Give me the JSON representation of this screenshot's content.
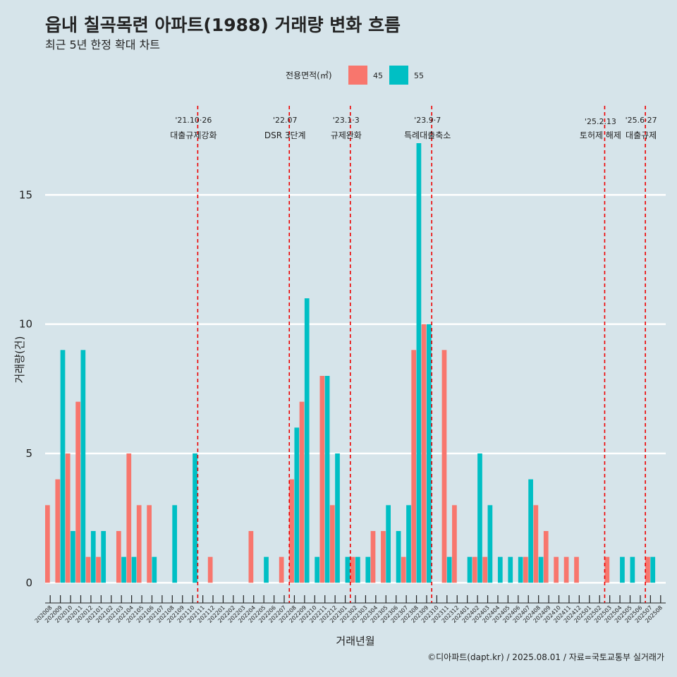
{
  "chart_data": {
    "type": "bar",
    "title": "읍내 칠곡목련 아파트(1988) 거래량 변화 흐름",
    "subtitle": "최근 5년 한정 확대 차트",
    "xlabel": "거래년월",
    "ylabel": "거래량(건)",
    "ylim": [
      -0.7,
      18.5
    ],
    "yticks": [
      0,
      5,
      10,
      15
    ],
    "legend": {
      "title": "전용면적(㎡)",
      "position": "top"
    },
    "categories": [
      "202008",
      "202009",
      "202010",
      "202011",
      "202012",
      "202101",
      "202102",
      "202103",
      "202104",
      "202105",
      "202106",
      "202107",
      "202108",
      "202109",
      "202110",
      "202111",
      "202112",
      "202201",
      "202202",
      "202203",
      "202204",
      "202205",
      "202206",
      "202207",
      "202208",
      "202209",
      "202210",
      "202211",
      "202212",
      "202301",
      "202302",
      "202303",
      "202304",
      "202305",
      "202306",
      "202307",
      "202308",
      "202309",
      "202310",
      "202311",
      "202312",
      "202401",
      "202402",
      "202403",
      "202404",
      "202405",
      "202406",
      "202407",
      "202408",
      "202409",
      "202410",
      "202411",
      "202412",
      "202501",
      "202502",
      "202503",
      "202504",
      "202505",
      "202506",
      "202507",
      "202508"
    ],
    "series": [
      {
        "name": "45",
        "color": "#f8766d",
        "values": [
          3,
          4,
          5,
          7,
          1,
          1,
          0,
          2,
          5,
          3,
          3,
          0,
          0,
          0,
          0,
          0,
          1,
          0,
          0,
          0,
          2,
          0,
          0,
          1,
          4,
          7,
          0,
          8,
          3,
          0,
          1,
          0,
          2,
          2,
          0,
          1,
          9,
          10,
          0,
          9,
          3,
          0,
          1,
          1,
          0,
          0,
          0,
          1,
          3,
          2,
          1,
          1,
          1,
          0,
          0,
          1,
          0,
          0,
          0,
          1,
          0
        ]
      },
      {
        "name": "55",
        "color": "#00bfc4",
        "values": [
          0,
          9,
          2,
          9,
          2,
          2,
          0,
          1,
          1,
          0,
          1,
          0,
          3,
          0,
          5,
          0,
          0,
          0,
          0,
          0,
          0,
          1,
          0,
          0,
          6,
          11,
          1,
          8,
          5,
          1,
          1,
          1,
          0,
          3,
          2,
          3,
          17,
          10,
          0,
          1,
          0,
          1,
          5,
          3,
          1,
          1,
          1,
          4,
          1,
          0,
          0,
          0,
          0,
          0,
          0,
          0,
          1,
          1,
          0,
          1,
          0
        ]
      }
    ],
    "annotations": [
      {
        "date": "'21.10·26",
        "label": "대출규제강화",
        "after": "202110"
      },
      {
        "date": "'22.07",
        "label": "DSR 3단계",
        "after": "202207"
      },
      {
        "date": "'23.1·3",
        "label": "규제완화",
        "after": "202301"
      },
      {
        "date": "'23.9·7",
        "label": "특례대출축소",
        "after": "202309"
      },
      {
        "date": "'25.2.13",
        "label": "토허제 해제",
        "after": "202502"
      },
      {
        "date": "'25.6·27",
        "label": "대출규제",
        "after": "202506"
      }
    ],
    "caption": "©디아파트(dapt.kr) / 2025.08.01 / 자료=국토교통부 실거래가"
  }
}
